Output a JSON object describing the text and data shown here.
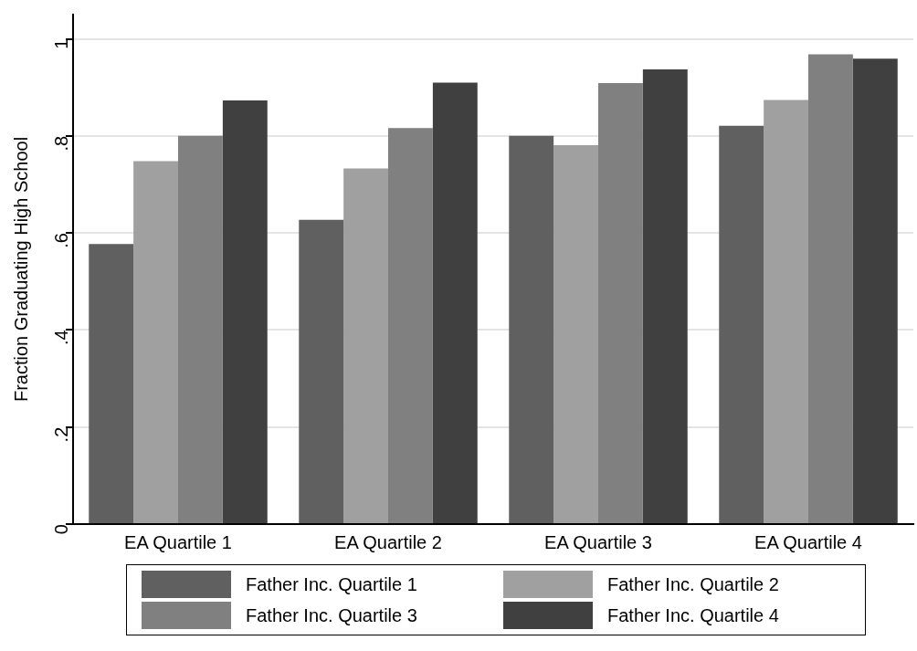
{
  "chart_data": {
    "type": "bar",
    "ylabel": "Fraction Graduating High School",
    "categories": [
      "EA Quartile 1",
      "EA Quartile 2",
      "EA Quartile 3",
      "EA Quartile 4"
    ],
    "series": [
      {
        "name": "Father Inc. Quartile 1",
        "color": "#606060",
        "values": [
          0.577,
          0.627,
          0.8,
          0.821
        ]
      },
      {
        "name": "Father Inc. Quartile 2",
        "color": "#a0a0a0",
        "values": [
          0.748,
          0.733,
          0.781,
          0.874
        ]
      },
      {
        "name": "Father Inc. Quartile 3",
        "color": "#808080",
        "values": [
          0.8,
          0.816,
          0.909,
          0.968
        ]
      },
      {
        "name": "Father Inc. Quartile 4",
        "color": "#404040",
        "values": [
          0.873,
          0.91,
          0.937,
          0.959
        ]
      }
    ],
    "ylim": [
      0,
      1.05
    ],
    "yticks": [
      0,
      {
        "value": 0.2,
        "label": ".2"
      },
      {
        "value": 0.4,
        "label": ".4"
      },
      {
        "value": 0.6,
        "label": ".6"
      },
      {
        "value": 0.8,
        "label": ".8"
      },
      1
    ],
    "grid": "y",
    "legend": "bottom"
  }
}
